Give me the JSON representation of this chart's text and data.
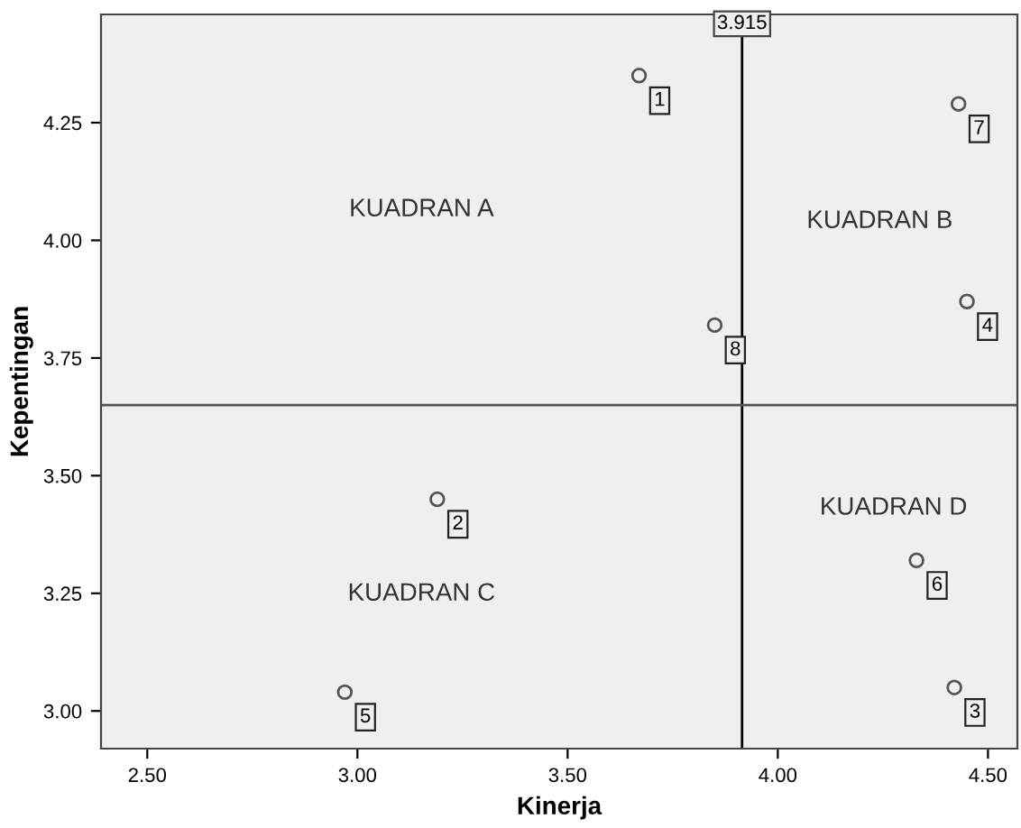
{
  "chart_data": {
    "type": "scatter",
    "xlabel": "Kinerja",
    "ylabel": "Kepentingan",
    "x": [
      3.67,
      3.19,
      4.42,
      4.45,
      2.97,
      4.33,
      4.43,
      3.85
    ],
    "series": [
      {
        "color": "#555555",
        "values": [
          4.35,
          3.45,
          3.05,
          3.87,
          3.04,
          3.32,
          4.29,
          3.82
        ]
      }
    ],
    "marker": "circle",
    "grid": false,
    "legend": false,
    "xlim": [
      2.39,
      4.57
    ],
    "xticks": [
      {
        "value": 2.5,
        "label": "2.50"
      },
      {
        "value": 3.0,
        "label": "3.00"
      },
      {
        "value": 3.5,
        "label": "3.50"
      },
      {
        "value": 4.0,
        "label": "4.00"
      },
      {
        "value": 4.5,
        "label": "4.50"
      }
    ],
    "ylim": [
      2.92,
      4.48
    ],
    "yticks": [
      {
        "value": 3.0,
        "label": "3.00"
      },
      {
        "value": 3.25,
        "label": "3.25"
      },
      {
        "value": 3.5,
        "label": "3.50"
      },
      {
        "value": 3.75,
        "label": "3.75"
      },
      {
        "value": 4.0,
        "label": "4.00"
      },
      {
        "value": 4.25,
        "label": "4.25"
      }
    ],
    "ref_lines": [
      {
        "axis": "x",
        "value": 3.915,
        "label": "3.915",
        "color": "#000000"
      },
      {
        "axis": "y",
        "value": 3.65,
        "color": "#555555"
      }
    ],
    "annotations": [
      {
        "text": "1",
        "x": 3.67,
        "y": 4.35
      },
      {
        "text": "2",
        "x": 3.19,
        "y": 3.45
      },
      {
        "text": "3",
        "x": 4.42,
        "y": 3.05
      },
      {
        "text": "4",
        "x": 4.45,
        "y": 3.87
      },
      {
        "text": "5",
        "x": 2.97,
        "y": 3.04
      },
      {
        "text": "6",
        "x": 4.33,
        "y": 3.32
      },
      {
        "text": "7",
        "x": 4.43,
        "y": 4.29
      },
      {
        "text": "8",
        "x": 3.85,
        "y": 3.82
      },
      "KUADRAN A",
      "KUADRAN B",
      "KUADRAN C",
      "KUADRAN D"
    ]
  }
}
